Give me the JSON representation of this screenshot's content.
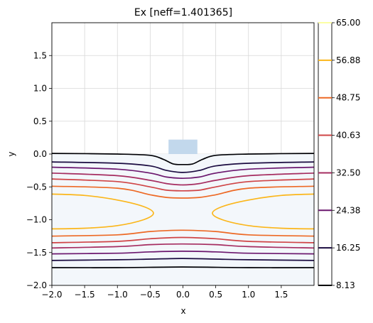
{
  "chart_data": {
    "type": "contour",
    "title": "Ex [neff=1.401365]",
    "xlabel": "x",
    "ylabel": "y",
    "xlim": [
      -2.0,
      2.0
    ],
    "ylim": [
      -2.0,
      2.0
    ],
    "xticks": [
      -2.0,
      -1.5,
      -1.0,
      -0.5,
      0.0,
      0.5,
      1.0,
      1.5
    ],
    "yticks": [
      -2.0,
      -1.5,
      -1.0,
      -0.5,
      0.0,
      0.5,
      1.0,
      1.5
    ],
    "xtick_labels": [
      "−2.0",
      "−1.5",
      "−1.0",
      "−0.5",
      "0.0",
      "0.5",
      "1.0",
      "1.5"
    ],
    "ytick_labels": [
      "−2.0",
      "−1.5",
      "−1.0",
      "−0.5",
      "0.0",
      "0.5",
      "1.0",
      "1.5"
    ],
    "grid": true,
    "geometry": {
      "core": {
        "x": [
          -0.22,
          0.22
        ],
        "y": [
          0.0,
          0.22
        ],
        "color": "#c2d8ec"
      },
      "substrate": {
        "x": [
          -2.0,
          2.0
        ],
        "y": [
          -2.0,
          0.0
        ],
        "color": "#f3f7fb"
      }
    },
    "colorbar": {
      "levels": [
        8.13,
        16.25,
        24.38,
        32.5,
        40.63,
        48.75,
        56.88,
        65.0
      ],
      "labels": [
        "8.13",
        "16.25",
        "24.38",
        "32.50",
        "40.63",
        "48.75",
        "56.88",
        "65.00"
      ],
      "colors": [
        "#000004",
        "#1b0c41",
        "#6b176e",
        "#a52c60",
        "#cf4446",
        "#ed6925",
        "#fbb61a",
        "#fcffa4"
      ]
    },
    "contours": [
      {
        "level": 8.13,
        "color": "#000004",
        "points": [
          [
            -2.0,
            0.01
          ],
          [
            -1.0,
            0.0
          ],
          [
            -0.5,
            -0.02
          ],
          [
            -0.3,
            -0.08
          ],
          [
            -0.15,
            -0.15
          ],
          [
            0.0,
            -0.16
          ],
          [
            0.15,
            -0.15
          ],
          [
            0.3,
            -0.08
          ],
          [
            0.5,
            -0.02
          ],
          [
            1.0,
            0.0
          ],
          [
            2.0,
            0.01
          ]
        ]
      },
      {
        "level": 16.25,
        "color": "#1b0c41",
        "points": [
          [
            -2.0,
            -0.12
          ],
          [
            -1.0,
            -0.14
          ],
          [
            -0.5,
            -0.18
          ],
          [
            -0.25,
            -0.25
          ],
          [
            0.0,
            -0.28
          ],
          [
            0.25,
            -0.25
          ],
          [
            0.5,
            -0.18
          ],
          [
            1.0,
            -0.14
          ],
          [
            2.0,
            -0.12
          ]
        ]
      },
      {
        "level": 24.38,
        "color": "#6b176e",
        "points": [
          [
            -2.0,
            -0.2
          ],
          [
            -1.0,
            -0.23
          ],
          [
            -0.5,
            -0.29
          ],
          [
            -0.25,
            -0.35
          ],
          [
            0.0,
            -0.37
          ],
          [
            0.25,
            -0.35
          ],
          [
            0.5,
            -0.29
          ],
          [
            1.0,
            -0.23
          ],
          [
            2.0,
            -0.2
          ]
        ]
      },
      {
        "level": 32.5,
        "color": "#a52c60",
        "points": [
          [
            -2.0,
            -0.29
          ],
          [
            -1.0,
            -0.33
          ],
          [
            -0.5,
            -0.4
          ],
          [
            -0.25,
            -0.45
          ],
          [
            0.0,
            -0.47
          ],
          [
            0.25,
            -0.45
          ],
          [
            0.5,
            -0.4
          ],
          [
            1.0,
            -0.33
          ],
          [
            2.0,
            -0.29
          ]
        ]
      },
      {
        "level": 40.63,
        "color": "#cf4446",
        "points": [
          [
            -2.0,
            -0.38
          ],
          [
            -1.0,
            -0.42
          ],
          [
            -0.5,
            -0.5
          ],
          [
            -0.25,
            -0.55
          ],
          [
            0.0,
            -0.56
          ],
          [
            0.25,
            -0.55
          ],
          [
            0.5,
            -0.5
          ],
          [
            1.0,
            -0.42
          ],
          [
            2.0,
            -0.38
          ]
        ]
      },
      {
        "level": 48.75,
        "color": "#ed6925",
        "points": [
          [
            -2.0,
            -0.49
          ],
          [
            -1.0,
            -0.52
          ],
          [
            -0.5,
            -0.62
          ],
          [
            -0.25,
            -0.66
          ],
          [
            0.0,
            -0.67
          ],
          [
            0.25,
            -0.66
          ],
          [
            0.5,
            -0.62
          ],
          [
            1.0,
            -0.52
          ],
          [
            2.0,
            -0.49
          ]
        ]
      },
      {
        "level": 56.88,
        "color": "#fbb61a",
        "points": [
          [
            -2.0,
            -0.61
          ],
          [
            -1.5,
            -0.63
          ],
          [
            -1.0,
            -0.7
          ],
          [
            -0.6,
            -0.8
          ],
          [
            -0.45,
            -0.9
          ],
          [
            -0.6,
            -1.0
          ],
          [
            -1.0,
            -1.09
          ],
          [
            -1.5,
            -1.13
          ],
          [
            -2.0,
            -1.14
          ]
        ]
      },
      {
        "level": 56.88,
        "color": "#fbb61a",
        "points": [
          [
            2.0,
            -0.61
          ],
          [
            1.5,
            -0.63
          ],
          [
            1.0,
            -0.7
          ],
          [
            0.6,
            -0.8
          ],
          [
            0.45,
            -0.9
          ],
          [
            0.6,
            -1.0
          ],
          [
            1.0,
            -1.09
          ],
          [
            1.5,
            -1.13
          ],
          [
            2.0,
            -1.14
          ]
        ]
      },
      {
        "level": 48.75,
        "color": "#ed6925",
        "points": [
          [
            -2.0,
            -1.25
          ],
          [
            -1.0,
            -1.23
          ],
          [
            -0.5,
            -1.18
          ],
          [
            0.0,
            -1.16
          ],
          [
            0.5,
            -1.18
          ],
          [
            1.0,
            -1.23
          ],
          [
            2.0,
            -1.25
          ]
        ]
      },
      {
        "level": 40.63,
        "color": "#cf4446",
        "points": [
          [
            -2.0,
            -1.35
          ],
          [
            -1.0,
            -1.33
          ],
          [
            -0.5,
            -1.29
          ],
          [
            0.0,
            -1.27
          ],
          [
            0.5,
            -1.29
          ],
          [
            1.0,
            -1.33
          ],
          [
            2.0,
            -1.35
          ]
        ]
      },
      {
        "level": 32.5,
        "color": "#a52c60",
        "points": [
          [
            -2.0,
            -1.43
          ],
          [
            -1.0,
            -1.41
          ],
          [
            -0.5,
            -1.38
          ],
          [
            0.0,
            -1.37
          ],
          [
            0.5,
            -1.38
          ],
          [
            1.0,
            -1.41
          ],
          [
            2.0,
            -1.43
          ]
        ]
      },
      {
        "level": 24.38,
        "color": "#6b176e",
        "points": [
          [
            -2.0,
            -1.52
          ],
          [
            -1.0,
            -1.51
          ],
          [
            -0.5,
            -1.49
          ],
          [
            0.0,
            -1.48
          ],
          [
            0.5,
            -1.49
          ],
          [
            1.0,
            -1.51
          ],
          [
            2.0,
            -1.52
          ]
        ]
      },
      {
        "level": 16.25,
        "color": "#1b0c41",
        "points": [
          [
            -2.0,
            -1.62
          ],
          [
            -1.0,
            -1.61
          ],
          [
            -0.5,
            -1.6
          ],
          [
            0.0,
            -1.59
          ],
          [
            0.5,
            -1.6
          ],
          [
            1.0,
            -1.61
          ],
          [
            2.0,
            -1.62
          ]
        ]
      },
      {
        "level": 8.13,
        "color": "#000004",
        "points": [
          [
            -2.0,
            -1.73
          ],
          [
            -1.0,
            -1.73
          ],
          [
            0.0,
            -1.72
          ],
          [
            1.0,
            -1.73
          ],
          [
            2.0,
            -1.73
          ]
        ]
      }
    ]
  }
}
